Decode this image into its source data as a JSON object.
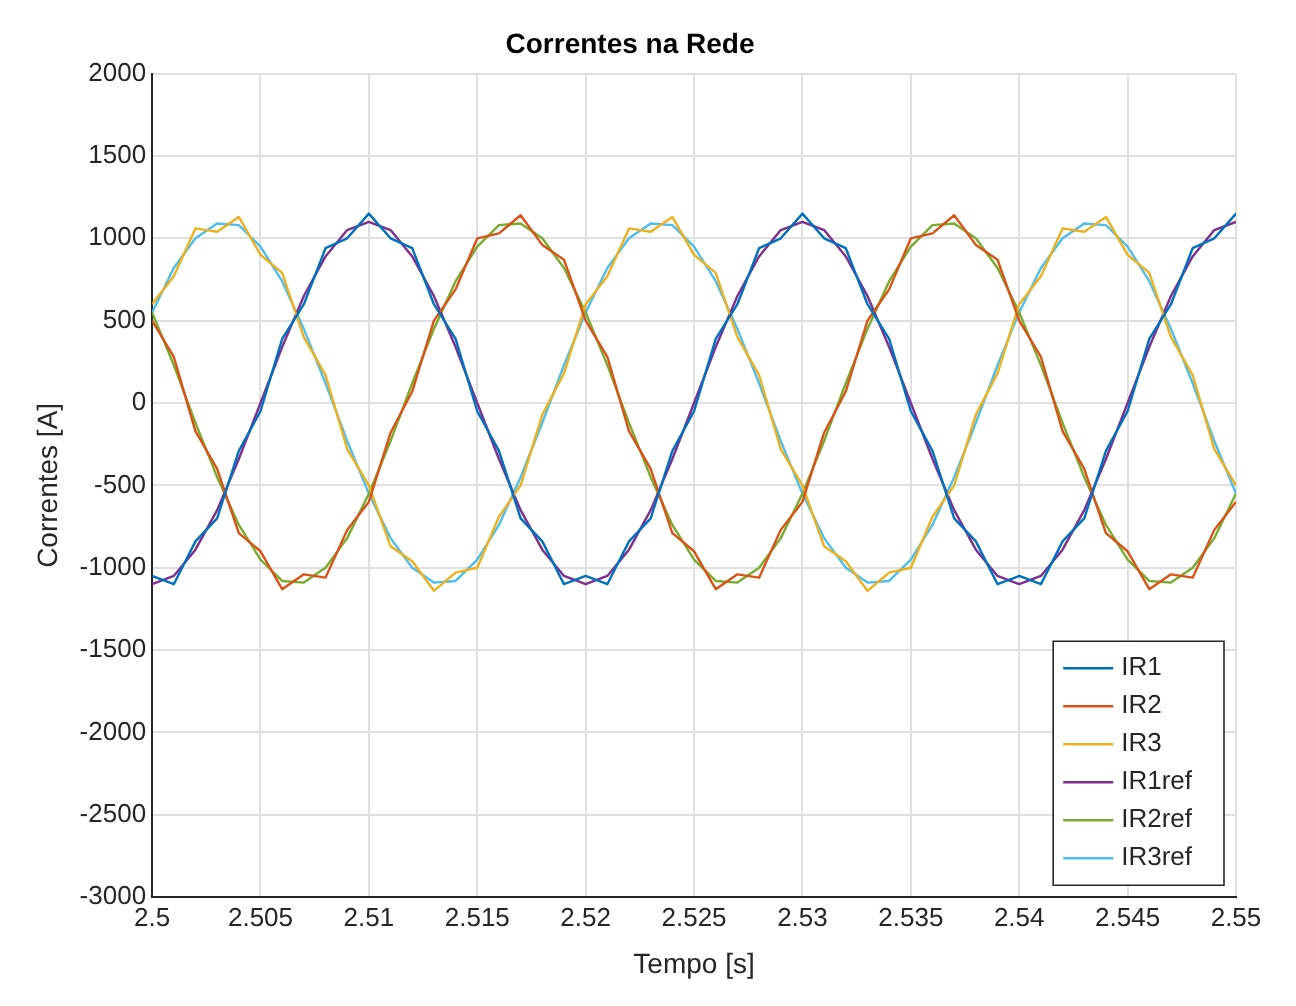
{
  "chart_data": {
    "type": "line",
    "title": "Correntes na Rede",
    "xlabel": "Tempo [s]",
    "ylabel": "Correntes [A]",
    "x": [
      2.5,
      2.501,
      2.502,
      2.503,
      2.504,
      2.505,
      2.506,
      2.507,
      2.508,
      2.509,
      2.51,
      2.511,
      2.512,
      2.513,
      2.514,
      2.515,
      2.516,
      2.517,
      2.518,
      2.519,
      2.52,
      2.521,
      2.522,
      2.523,
      2.524,
      2.525,
      2.526,
      2.527,
      2.528,
      2.529,
      2.53,
      2.531,
      2.532,
      2.533,
      2.534,
      2.535,
      2.536,
      2.537,
      2.538,
      2.539,
      2.54,
      2.541,
      2.542,
      2.543,
      2.544,
      2.545,
      2.546,
      2.547,
      2.548,
      2.549,
      2.55
    ],
    "series": [
      {
        "name": "IR1",
        "color": "#0072bd",
        "values": [
          -1050,
          -1100,
          -840,
          -700,
          -290,
          -50,
          390,
          600,
          940,
          1000,
          1150,
          1000,
          940,
          600,
          390,
          -50,
          -290,
          -700,
          -840,
          -1100,
          -1050,
          -1100,
          -840,
          -700,
          -290,
          -50,
          390,
          600,
          940,
          1000,
          1150,
          1000,
          940,
          600,
          390,
          -50,
          -290,
          -700,
          -840,
          -1100,
          -1050,
          -1100,
          -840,
          -700,
          -290,
          -50,
          390,
          600,
          940,
          1000,
          1150
        ]
      },
      {
        "name": "IR2",
        "color": "#d95319",
        "values": [
          500,
          280,
          -170,
          -400,
          -790,
          -900,
          -1130,
          -1040,
          -1060,
          -770,
          -600,
          -180,
          70,
          500,
          690,
          1000,
          1030,
          1140,
          960,
          870,
          500,
          280,
          -170,
          -400,
          -790,
          -900,
          -1130,
          -1040,
          -1060,
          -770,
          -600,
          -180,
          70,
          500,
          690,
          1000,
          1030,
          1140,
          960,
          870,
          500,
          280,
          -170,
          -400,
          -790,
          -900,
          -1130,
          -1040,
          -1060,
          -770,
          -600
        ]
      },
      {
        "name": "IR3",
        "color": "#edb120",
        "values": [
          600,
          770,
          1060,
          1040,
          1130,
          900,
          790,
          400,
          170,
          -280,
          -500,
          -870,
          -960,
          -1140,
          -1030,
          -1000,
          -690,
          -500,
          -70,
          180,
          600,
          770,
          1060,
          1040,
          1130,
          900,
          790,
          400,
          170,
          -280,
          -500,
          -870,
          -960,
          -1140,
          -1030,
          -1000,
          -690,
          -500,
          -70,
          180,
          600,
          770,
          1060,
          1040,
          1130,
          900,
          790,
          400,
          170,
          -280,
          -500
        ]
      },
      {
        "name": "IR1ref",
        "color": "#7e2f8e",
        "values": [
          -1100,
          -1050,
          -890,
          -650,
          -340,
          0,
          340,
          650,
          890,
          1050,
          1100,
          1050,
          890,
          650,
          340,
          0,
          -340,
          -650,
          -890,
          -1050,
          -1100,
          -1050,
          -890,
          -650,
          -340,
          0,
          340,
          650,
          890,
          1050,
          1100,
          1050,
          890,
          650,
          340,
          0,
          -340,
          -650,
          -890,
          -1050,
          -1100,
          -1050,
          -890,
          -650,
          -340,
          0,
          340,
          650,
          890,
          1050,
          1100
        ]
      },
      {
        "name": "IR2ref",
        "color": "#77ac30",
        "values": [
          550,
          230,
          -120,
          -450,
          -740,
          -950,
          -1080,
          -1090,
          -1000,
          -820,
          -550,
          -230,
          120,
          450,
          740,
          950,
          1080,
          1090,
          1000,
          820,
          550,
          230,
          -120,
          -450,
          -740,
          -950,
          -1080,
          -1090,
          -1000,
          -820,
          -550,
          -230,
          120,
          450,
          740,
          950,
          1080,
          1090,
          1000,
          820,
          550,
          230,
          -120,
          -450,
          -740,
          -950,
          -1080,
          -1090,
          -1000,
          -820,
          -550
        ]
      },
      {
        "name": "IR3ref",
        "color": "#4dbeee",
        "values": [
          550,
          820,
          1000,
          1090,
          1080,
          950,
          740,
          450,
          120,
          -230,
          -550,
          -820,
          -1000,
          -1090,
          -1080,
          -950,
          -740,
          -450,
          -120,
          230,
          550,
          820,
          1000,
          1090,
          1080,
          950,
          740,
          450,
          120,
          -230,
          -550,
          -820,
          -1000,
          -1090,
          -1080,
          -950,
          -740,
          -450,
          -120,
          230,
          550,
          820,
          1000,
          1090,
          1080,
          950,
          740,
          450,
          120,
          -230,
          -550
        ]
      }
    ],
    "xlim": [
      2.5,
      2.55
    ],
    "xticks": [
      2.5,
      2.505,
      2.51,
      2.515,
      2.52,
      2.525,
      2.53,
      2.535,
      2.54,
      2.545,
      2.55
    ],
    "ylim": [
      -3000,
      2000
    ],
    "yticks": [
      -3000,
      -2500,
      -2000,
      -1500,
      -1000,
      -500,
      0,
      500,
      1000,
      1500,
      2000
    ],
    "grid": true,
    "legend": "bottom right",
    "marker": "none",
    "line_style": "solid"
  }
}
